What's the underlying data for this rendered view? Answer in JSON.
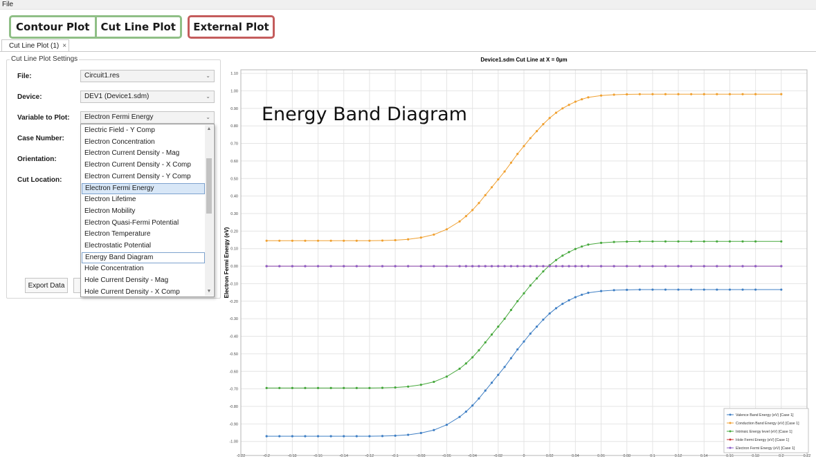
{
  "menubar": {
    "file": "File"
  },
  "toolbar": {
    "contour_plot": "Contour Plot",
    "cut_line_plot": "Cut Line Plot",
    "external_plot": "External Plot"
  },
  "tab": {
    "label": "Cut Line Plot (1)",
    "close": "×"
  },
  "settings": {
    "legend": "Cut Line Plot Settings",
    "file_label": "File:",
    "file_value": "Circuit1.res",
    "device_label": "Device:",
    "device_value": "DEV1 (Device1.sdm)",
    "variable_label": "Variable to Plot:",
    "variable_value": "Electron Fermi Energy",
    "case_label": "Case Number:",
    "orientation_label": "Orientation:",
    "cut_location_label": "Cut Location:",
    "export_label": "Export Data"
  },
  "dropdown": {
    "items": [
      "Electric Field - Y Comp",
      "Electron Concentration",
      "Electron Current Density - Mag",
      "Electron Current Density - X Comp",
      "Electron Current Density - Y Comp",
      "Electron Fermi Energy",
      "Electron Lifetime",
      "Electron Mobility",
      "Electron Quasi-Fermi Potential",
      "Electron Temperature",
      "Electrostatic Potential",
      "Energy Band Diagram",
      "Hole Concentration",
      "Hole Current Density - Mag",
      "Hole Current Density - X Comp"
    ],
    "hover_index": 5,
    "selected_index": 11
  },
  "overlay": {
    "text": "Energy Band Diagram"
  },
  "colors": {
    "green_frame": "#8fbf86",
    "red_frame": "#c45c5c",
    "valence": "#3f7fc4",
    "conduction": "#f0a030",
    "intrinsic": "#46a83c",
    "hole_fermi": "#c83232",
    "electron_fermi": "#8a5cc8"
  },
  "chart_data": {
    "type": "line",
    "title": "Device1.sdm Cut Line at X = 0µm",
    "xlabel": "",
    "ylabel": "Electron Fermi Energy (eV)",
    "xlim": [
      -0.22,
      0.22
    ],
    "ylim": [
      -1.08,
      1.12
    ],
    "xticks": [
      "-0.22",
      "-0.2",
      "-0.18",
      "-0.16",
      "-0.14",
      "-0.12",
      "-0.1",
      "-0.08",
      "-0.06",
      "-0.04",
      "-0.02",
      "0",
      "0.02",
      "0.04",
      "0.06",
      "0.08",
      "0.1",
      "0.12",
      "0.14",
      "0.16",
      "0.18",
      "0.2",
      "0.22"
    ],
    "yticks": [
      "1.10",
      "1.00",
      "0.90",
      "0.80",
      "0.70",
      "0.60",
      "0.50",
      "0.40",
      "0.30",
      "0.20",
      "0.10",
      "0.00",
      "-0.10",
      "-0.20",
      "-0.30",
      "-0.40",
      "-0.50",
      "-0.60",
      "-0.70",
      "-0.80",
      "-0.90",
      "-1.00"
    ],
    "grid": true,
    "legend_position": "bottom-right",
    "x": [
      -0.2,
      -0.19,
      -0.18,
      -0.17,
      -0.16,
      -0.15,
      -0.14,
      -0.13,
      -0.12,
      -0.11,
      -0.1,
      -0.09,
      -0.08,
      -0.07,
      -0.06,
      -0.05,
      -0.045,
      -0.04,
      -0.035,
      -0.03,
      -0.025,
      -0.02,
      -0.015,
      -0.01,
      -0.005,
      0,
      0.005,
      0.01,
      0.015,
      0.02,
      0.025,
      0.03,
      0.035,
      0.04,
      0.045,
      0.05,
      0.06,
      0.07,
      0.08,
      0.09,
      0.1,
      0.11,
      0.12,
      0.13,
      0.14,
      0.15,
      0.16,
      0.17,
      0.18,
      0.2
    ],
    "series": [
      {
        "name": "Valence Band Energy (eV) [Case 1]",
        "values": [
          -0.97,
          -0.97,
          -0.97,
          -0.97,
          -0.97,
          -0.97,
          -0.97,
          -0.97,
          -0.97,
          -0.969,
          -0.967,
          -0.962,
          -0.952,
          -0.935,
          -0.905,
          -0.86,
          -0.83,
          -0.795,
          -0.755,
          -0.71,
          -0.665,
          -0.62,
          -0.575,
          -0.525,
          -0.475,
          -0.43,
          -0.385,
          -0.345,
          -0.305,
          -0.27,
          -0.24,
          -0.215,
          -0.195,
          -0.177,
          -0.163,
          -0.152,
          -0.142,
          -0.137,
          -0.135,
          -0.134,
          -0.134,
          -0.134,
          -0.134,
          -0.134,
          -0.134,
          -0.134,
          -0.134,
          -0.134,
          -0.134,
          -0.134
        ]
      },
      {
        "name": "Conduction Band Energy (eV) [Case 1]",
        "values": [
          0.145,
          0.145,
          0.145,
          0.145,
          0.145,
          0.145,
          0.145,
          0.145,
          0.145,
          0.146,
          0.148,
          0.153,
          0.163,
          0.18,
          0.21,
          0.255,
          0.285,
          0.32,
          0.36,
          0.405,
          0.45,
          0.495,
          0.54,
          0.59,
          0.64,
          0.685,
          0.73,
          0.77,
          0.81,
          0.845,
          0.875,
          0.9,
          0.92,
          0.938,
          0.952,
          0.963,
          0.973,
          0.978,
          0.98,
          0.981,
          0.981,
          0.981,
          0.981,
          0.981,
          0.981,
          0.981,
          0.981,
          0.981,
          0.981,
          0.981
        ]
      },
      {
        "name": "Intrinsic Energy level (eV) [Case 1]",
        "values": [
          -0.695,
          -0.695,
          -0.695,
          -0.695,
          -0.695,
          -0.695,
          -0.695,
          -0.695,
          -0.695,
          -0.694,
          -0.692,
          -0.687,
          -0.677,
          -0.66,
          -0.63,
          -0.585,
          -0.555,
          -0.52,
          -0.48,
          -0.435,
          -0.39,
          -0.345,
          -0.3,
          -0.25,
          -0.2,
          -0.155,
          -0.11,
          -0.07,
          -0.03,
          0.005,
          0.035,
          0.06,
          0.08,
          0.098,
          0.112,
          0.123,
          0.133,
          0.138,
          0.14,
          0.141,
          0.141,
          0.141,
          0.141,
          0.141,
          0.141,
          0.141,
          0.141,
          0.141,
          0.141,
          0.141
        ]
      },
      {
        "name": "Hole Fermi Energy (eV) [Case 1]",
        "values": [
          0,
          0,
          0,
          0,
          0,
          0,
          0,
          0,
          0,
          0,
          0,
          0,
          0,
          0,
          0,
          0,
          0,
          0,
          0,
          0,
          0,
          0,
          0,
          0,
          0,
          0,
          0,
          0,
          0,
          0,
          0,
          0,
          0,
          0,
          0,
          0,
          0,
          0,
          0,
          0,
          0,
          0,
          0,
          0,
          0,
          0,
          0,
          0,
          0,
          0
        ]
      },
      {
        "name": "Electron Fermi Energy (eV) [Case 1]",
        "values": [
          0,
          0,
          0,
          0,
          0,
          0,
          0,
          0,
          0,
          0,
          0,
          0,
          0,
          0,
          0,
          0,
          0,
          0,
          0,
          0,
          0,
          0,
          0,
          0,
          0,
          0,
          0,
          0,
          0,
          0,
          0,
          0,
          0,
          0,
          0,
          0,
          0,
          0,
          0,
          0,
          0,
          0,
          0,
          0,
          0,
          0,
          0,
          0,
          0,
          0
        ]
      }
    ]
  }
}
